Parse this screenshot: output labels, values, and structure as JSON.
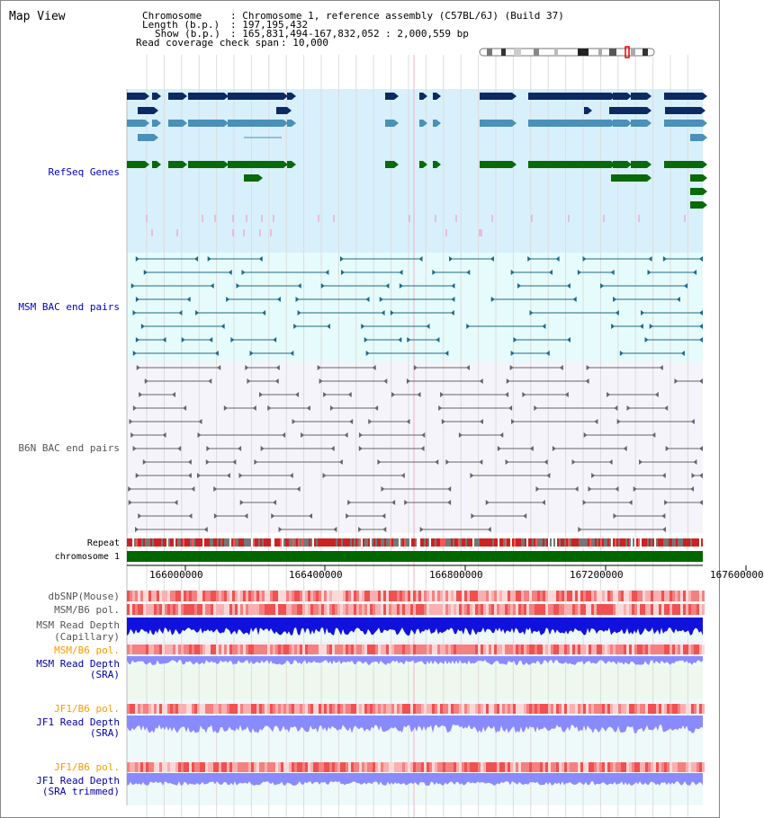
{
  "title": "Map View",
  "header": {
    "chromosome_label": "Chromosome",
    "chromosome_value": ": Chromosome 1, reference assembly (C57BL/6J) (Build 37)",
    "length_label": "Length (b.p.)",
    "length_value": ": 197,195,432",
    "show_label": "Show (b.p.)",
    "show_value": ": 165,831,494-167,832,052 : 2,000,559 bp",
    "coverage_label": "Read coverage check span",
    "coverage_value": ": 10,000"
  },
  "tracks": {
    "refseq": "RefSeq Genes",
    "msm_bac": "MSM BAC end pairs",
    "b6n_bac": "B6N BAC end pairs",
    "repeat": "Repeat",
    "chromosome": "chromosome 1",
    "dbsnp": "dbSNP(Mouse)",
    "msm_b6_pol": "MSM/B6 pol.",
    "msm_read_depth_cap": "MSM Read Depth",
    "msm_read_depth_cap_sub": "(Capillary)",
    "msm_b6_pol2": "MSM/B6 pol.",
    "msm_read_depth_sra": "MSM Read Depth",
    "msm_read_depth_sra_sub": "(SRA)",
    "jf1_b6_pol": "JF1/B6 pol.",
    "jf1_read_depth_sra": "JF1 Read Depth",
    "jf1_read_depth_sra_sub": "(SRA)",
    "jf1_b6_pol2": "JF1/B6 pol.",
    "jf1_read_depth_trim": "JF1 Read Depth",
    "jf1_read_depth_trim_sub": "(SRA trimmed)"
  },
  "axis": {
    "ticks": [
      "166000000",
      "166400000",
      "166800000",
      "167200000",
      "167600000"
    ]
  },
  "colors": {
    "refseq_bg": "#d8f0fb",
    "msm_bg": "#e6fbfb",
    "b6n_bg": "#f4f4fa",
    "gene_dark": "#0b2a63",
    "gene_mid": "#4a90b8",
    "gene_green": "#0a6a0a",
    "gene_pink": "#ff88bb",
    "msm_line": "#1d6a8a",
    "b6n_line": "#666666",
    "chrom_green": "#006600",
    "depth_blue": "#1111dd",
    "depth_light": "#8a8aff"
  }
}
